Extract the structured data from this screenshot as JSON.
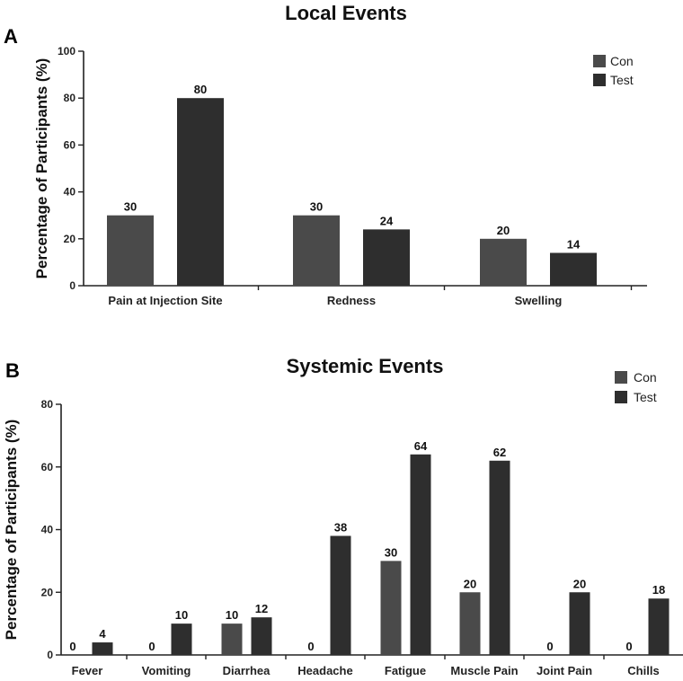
{
  "chart_data": [
    {
      "type": "bar",
      "panel": "A",
      "title": "Local Events",
      "xlabel": "",
      "ylabel": "Percentage of Participants (%)",
      "ylim": [
        0,
        100
      ],
      "yticks": [
        0,
        20,
        40,
        60,
        80,
        100
      ],
      "categories": [
        "Pain at Injection Site",
        "Redness",
        "Swelling"
      ],
      "series": [
        {
          "name": "Con",
          "values": [
            30,
            30,
            20
          ],
          "color": "#4a4a4a"
        },
        {
          "name": "Test",
          "values": [
            80,
            24,
            14
          ],
          "color": "#2e2e2e"
        }
      ],
      "legend": "top-right",
      "grid": false
    },
    {
      "type": "bar",
      "panel": "B",
      "title": "Systemic Events",
      "xlabel": "",
      "ylabel": "Percentage of Participants (%)",
      "ylim": [
        0,
        80
      ],
      "yticks": [
        0,
        20,
        40,
        60,
        80
      ],
      "categories": [
        "Fever",
        "Vomiting",
        "Diarrhea",
        "Headache",
        "Fatigue",
        "Muscle Pain",
        "Joint Pain",
        "Chills"
      ],
      "series": [
        {
          "name": "Con",
          "values": [
            0,
            0,
            10,
            0,
            30,
            20,
            0,
            0
          ],
          "color": "#4a4a4a"
        },
        {
          "name": "Test",
          "values": [
            4,
            10,
            12,
            38,
            64,
            62,
            20,
            18
          ],
          "color": "#2e2e2e"
        }
      ],
      "legend": "top-right",
      "grid": false
    }
  ]
}
